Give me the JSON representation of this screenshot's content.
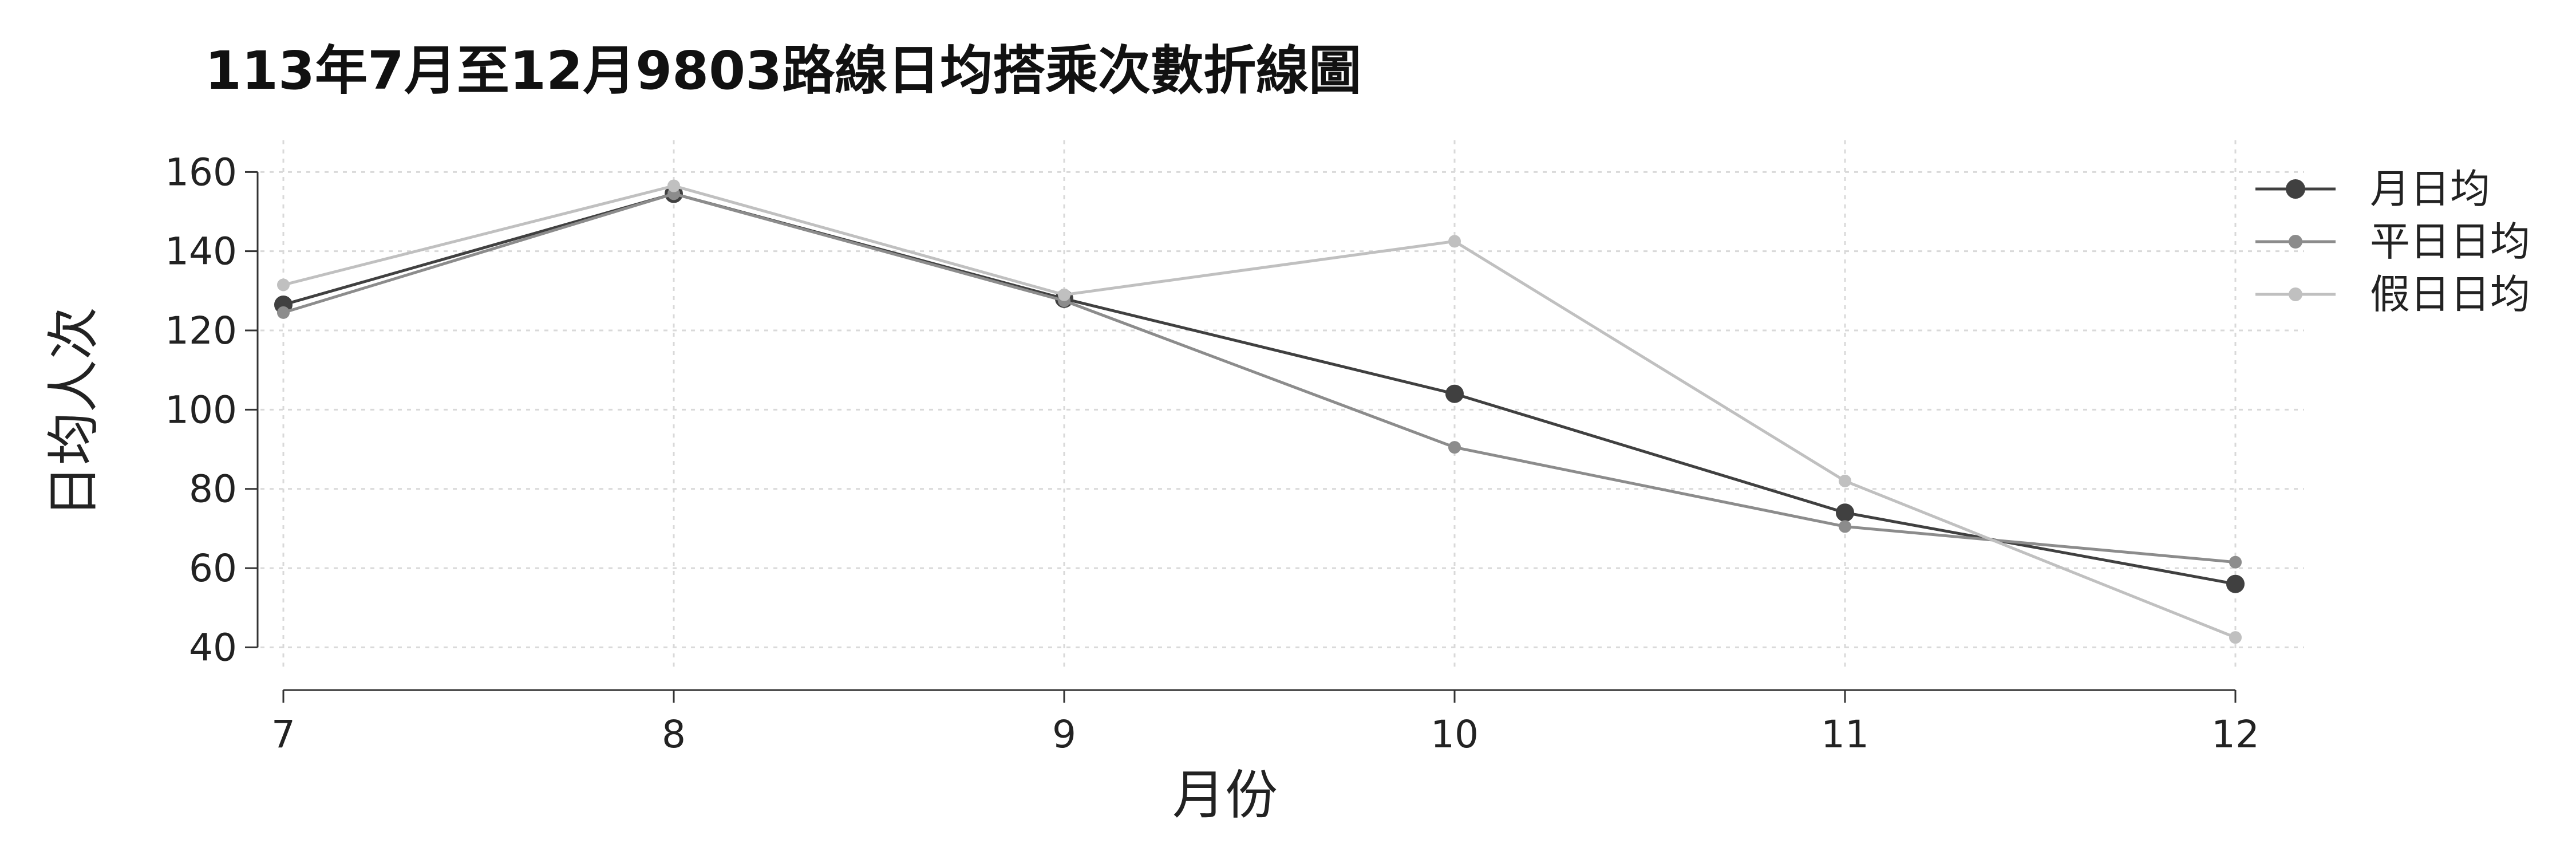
{
  "chart_data": {
    "type": "line",
    "title": "113年7月至12月9803路線日均搭乘次數折線圖",
    "xlabel": "月份",
    "ylabel": "日均人次",
    "x": [
      7,
      8,
      9,
      10,
      11,
      12
    ],
    "xlim": [
      7,
      12
    ],
    "ylim": [
      35,
      168
    ],
    "yticks": [
      40,
      60,
      80,
      100,
      120,
      140,
      160
    ],
    "grid": true,
    "legend_position": "top-right",
    "series": [
      {
        "name": "月日均",
        "values": [
          126.5,
          154.5,
          128,
          104,
          74,
          56
        ],
        "color": "#404040",
        "marker_size": "large"
      },
      {
        "name": "平日日均",
        "values": [
          124.5,
          154.5,
          127.5,
          90.5,
          70.5,
          61.5
        ],
        "color": "#8c8c8c",
        "marker_size": "small"
      },
      {
        "name": "假日日均",
        "values": [
          131.5,
          156.5,
          129,
          142.5,
          82,
          42.5
        ],
        "color": "#c0c0c0",
        "marker_size": "small"
      }
    ]
  }
}
